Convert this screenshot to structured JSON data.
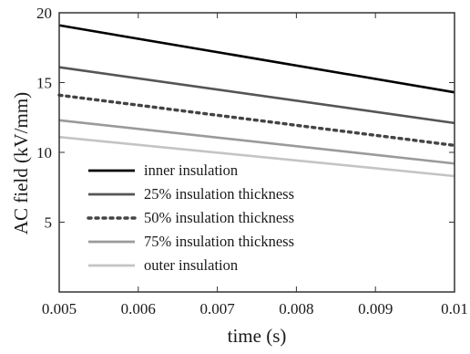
{
  "chart_data": {
    "type": "line",
    "xlabel": "time (s)",
    "ylabel": "AC field (kV/mm)",
    "xlim": [
      0.005,
      0.01
    ],
    "ylim": [
      0,
      20
    ],
    "x_ticks": [
      "0.005",
      "0.006",
      "0.007",
      "0.008",
      "0.009",
      "0.01"
    ],
    "y_ticks": [
      "5",
      "10",
      "15",
      "20"
    ],
    "grid": false,
    "legend_position": "lower-left",
    "series": [
      {
        "name": "inner insulation",
        "x": [
          0.005,
          0.01
        ],
        "y": [
          19.1,
          14.3
        ],
        "color": "#000000",
        "dash": "solid"
      },
      {
        "name": "25% insulation thickness",
        "x": [
          0.005,
          0.01
        ],
        "y": [
          16.1,
          12.1
        ],
        "color": "#555555",
        "dash": "solid"
      },
      {
        "name": "50% insulation thickness",
        "x": [
          0.005,
          0.01
        ],
        "y": [
          14.1,
          10.5
        ],
        "color": "#444444",
        "dash": "dotted"
      },
      {
        "name": "75% insulation thickness",
        "x": [
          0.005,
          0.01
        ],
        "y": [
          12.3,
          9.2
        ],
        "color": "#9a9a9a",
        "dash": "solid"
      },
      {
        "name": "outer insulation",
        "x": [
          0.005,
          0.01
        ],
        "y": [
          11.1,
          8.3
        ],
        "color": "#c4c4c4",
        "dash": "solid"
      }
    ]
  }
}
